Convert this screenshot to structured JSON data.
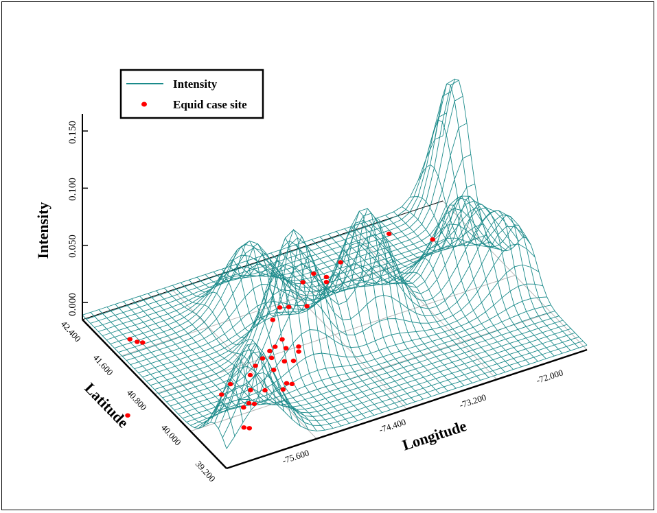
{
  "chart_data": {
    "type": "surface",
    "zlabel": "Intensity",
    "xlabel": "Longitude",
    "ylabel": "Latitude",
    "z_ticks": [
      "0.000",
      "0.050",
      "0.100",
      "0.150"
    ],
    "x_ticks": [
      "-75.600",
      "-74.400",
      "-73.200",
      "-72.000"
    ],
    "y_ticks": [
      "39.200",
      "40.000",
      "40.800",
      "41.600",
      "42.400"
    ],
    "xlim": [
      -76.5,
      -71.5
    ],
    "ylim": [
      38.9,
      42.8
    ],
    "zlim": [
      0,
      0.165
    ],
    "surface_color": "#1a8a8a",
    "point_color": "#ff0000",
    "legend": {
      "placement": "top-left",
      "entries": [
        {
          "label": "Intensity",
          "marker": "line"
        },
        {
          "label": "Equid case site",
          "marker": "dot"
        }
      ]
    },
    "peaks": [
      {
        "lon": -76.0,
        "lat": 39.2,
        "height": 0.085
      },
      {
        "lon": -74.7,
        "lat": 40.6,
        "height": 0.11
      },
      {
        "lon": -74.7,
        "lat": 41.8,
        "height": 0.06
      },
      {
        "lon": -73.6,
        "lat": 40.8,
        "height": 0.1
      },
      {
        "lon": -72.2,
        "lat": 41.0,
        "height": 0.07
      },
      {
        "lon": -71.8,
        "lat": 40.5,
        "height": 0.06
      }
    ],
    "case_sites": [
      {
        "lon": -75.9,
        "lat": 39.6
      },
      {
        "lon": -75.85,
        "lat": 39.55
      },
      {
        "lon": -75.7,
        "lat": 40.0
      },
      {
        "lon": -75.6,
        "lat": 40.05
      },
      {
        "lon": -75.55,
        "lat": 40.0
      },
      {
        "lon": -75.45,
        "lat": 40.3
      },
      {
        "lon": -75.3,
        "lat": 40.2
      },
      {
        "lon": -75.1,
        "lat": 40.1
      },
      {
        "lon": -75.0,
        "lat": 40.2
      },
      {
        "lon": -74.95,
        "lat": 40.15
      },
      {
        "lon": -75.3,
        "lat": 40.6
      },
      {
        "lon": -75.0,
        "lat": 40.55
      },
      {
        "lon": -75.15,
        "lat": 40.75
      },
      {
        "lon": -75.0,
        "lat": 40.85
      },
      {
        "lon": -74.9,
        "lat": 40.8
      },
      {
        "lon": -74.8,
        "lat": 40.65
      },
      {
        "lon": -74.7,
        "lat": 40.6
      },
      {
        "lon": -74.85,
        "lat": 40.95
      },
      {
        "lon": -74.75,
        "lat": 41.0
      },
      {
        "lon": -74.6,
        "lat": 41.1
      },
      {
        "lon": -74.65,
        "lat": 40.9
      },
      {
        "lon": -74.55,
        "lat": 40.75
      },
      {
        "lon": -74.5,
        "lat": 40.85
      },
      {
        "lon": -75.8,
        "lat": 40.4
      },
      {
        "lon": -75.6,
        "lat": 40.55
      },
      {
        "lon": -76.2,
        "lat": 42.1
      },
      {
        "lon": -76.15,
        "lat": 42.0
      },
      {
        "lon": -76.1,
        "lat": 41.95
      },
      {
        "lon": -74.5,
        "lat": 41.55
      },
      {
        "lon": -74.3,
        "lat": 41.75
      },
      {
        "lon": -74.2,
        "lat": 41.7
      },
      {
        "lon": -74.0,
        "lat": 41.6
      },
      {
        "lon": -73.8,
        "lat": 42.1
      },
      {
        "lon": -73.6,
        "lat": 42.2
      },
      {
        "lon": -73.5,
        "lat": 42.05
      },
      {
        "lon": -73.55,
        "lat": 41.95
      },
      {
        "lon": -73.2,
        "lat": 42.25
      },
      {
        "lon": -72.4,
        "lat": 42.5
      },
      {
        "lon": -72.0,
        "lat": 42.1
      },
      {
        "lon": -77.0,
        "lat": 40.6
      }
    ]
  }
}
